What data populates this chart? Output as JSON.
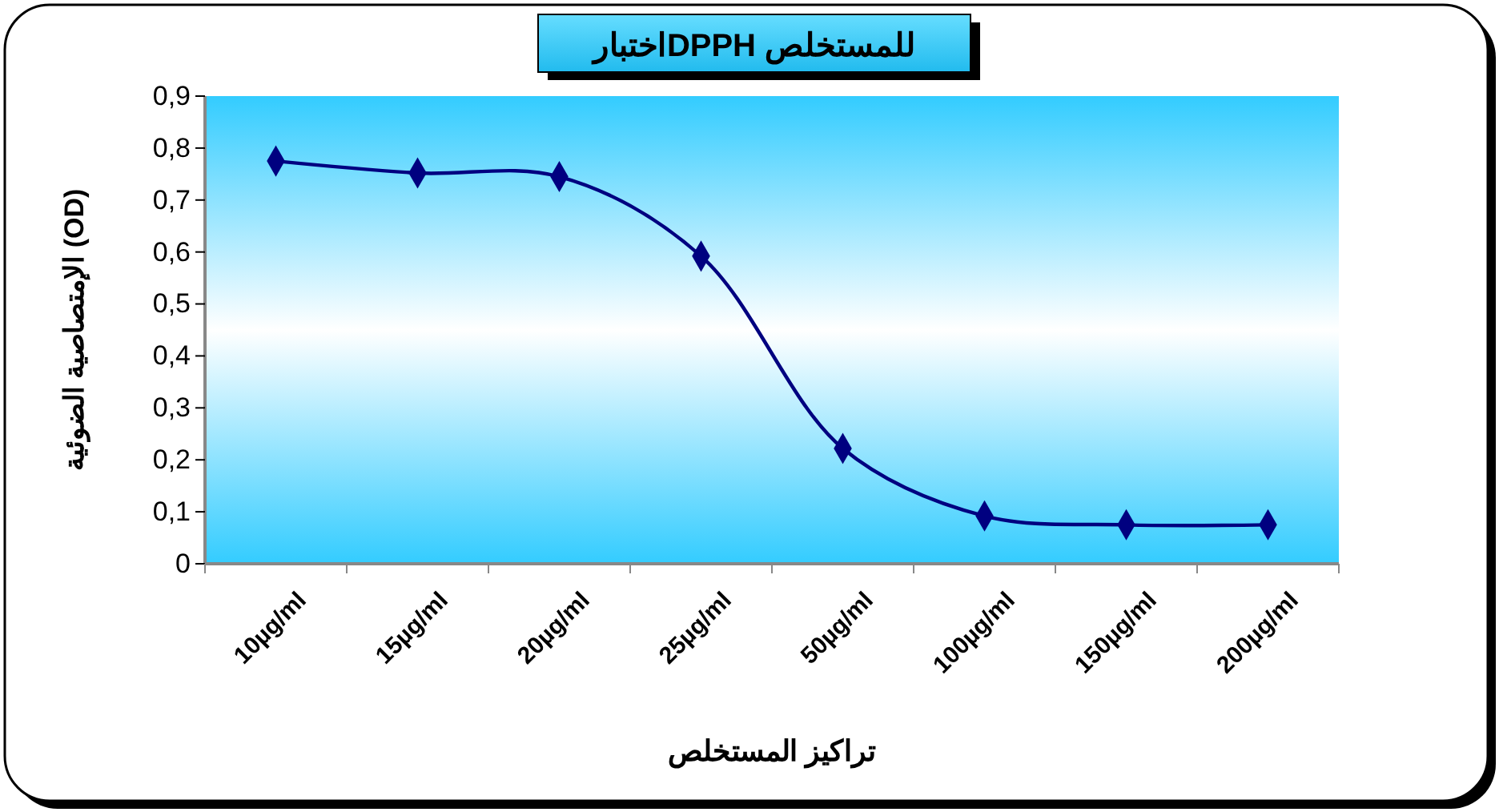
{
  "chart_data": {
    "type": "line",
    "title": "اختبارDPPH للمستخلص",
    "xlabel": "تراكيز المستخلص",
    "ylabel": "الإمتصاصية الضوئية (OD)",
    "categories": [
      "10µg/ml",
      "15µg/ml",
      "20µg/ml",
      "25µg/ml",
      "50µg/ml",
      "100µg/ml",
      "150µg/ml",
      "200µg/ml"
    ],
    "series": [
      {
        "color": "#000080",
        "values": [
          0.775,
          0.752,
          0.745,
          0.592,
          0.222,
          0.092,
          0.075,
          0.075
        ]
      }
    ],
    "ylim": [
      0,
      0.9
    ],
    "yticks": [
      0,
      {
        "value": 0.1,
        "label": "0,1"
      },
      {
        "value": 0.2,
        "label": "0,2"
      },
      {
        "value": 0.3,
        "label": "0,3"
      },
      {
        "value": 0.4,
        "label": "0,4"
      },
      {
        "value": 0.5,
        "label": "0,5"
      },
      {
        "value": 0.6,
        "label": "0,6"
      },
      {
        "value": 0.7,
        "label": "0,7"
      },
      {
        "value": 0.8,
        "label": "0,8"
      },
      {
        "value": 0.9,
        "label": "0,9"
      }
    ],
    "marker": "diamond",
    "line_style": "solid"
  }
}
